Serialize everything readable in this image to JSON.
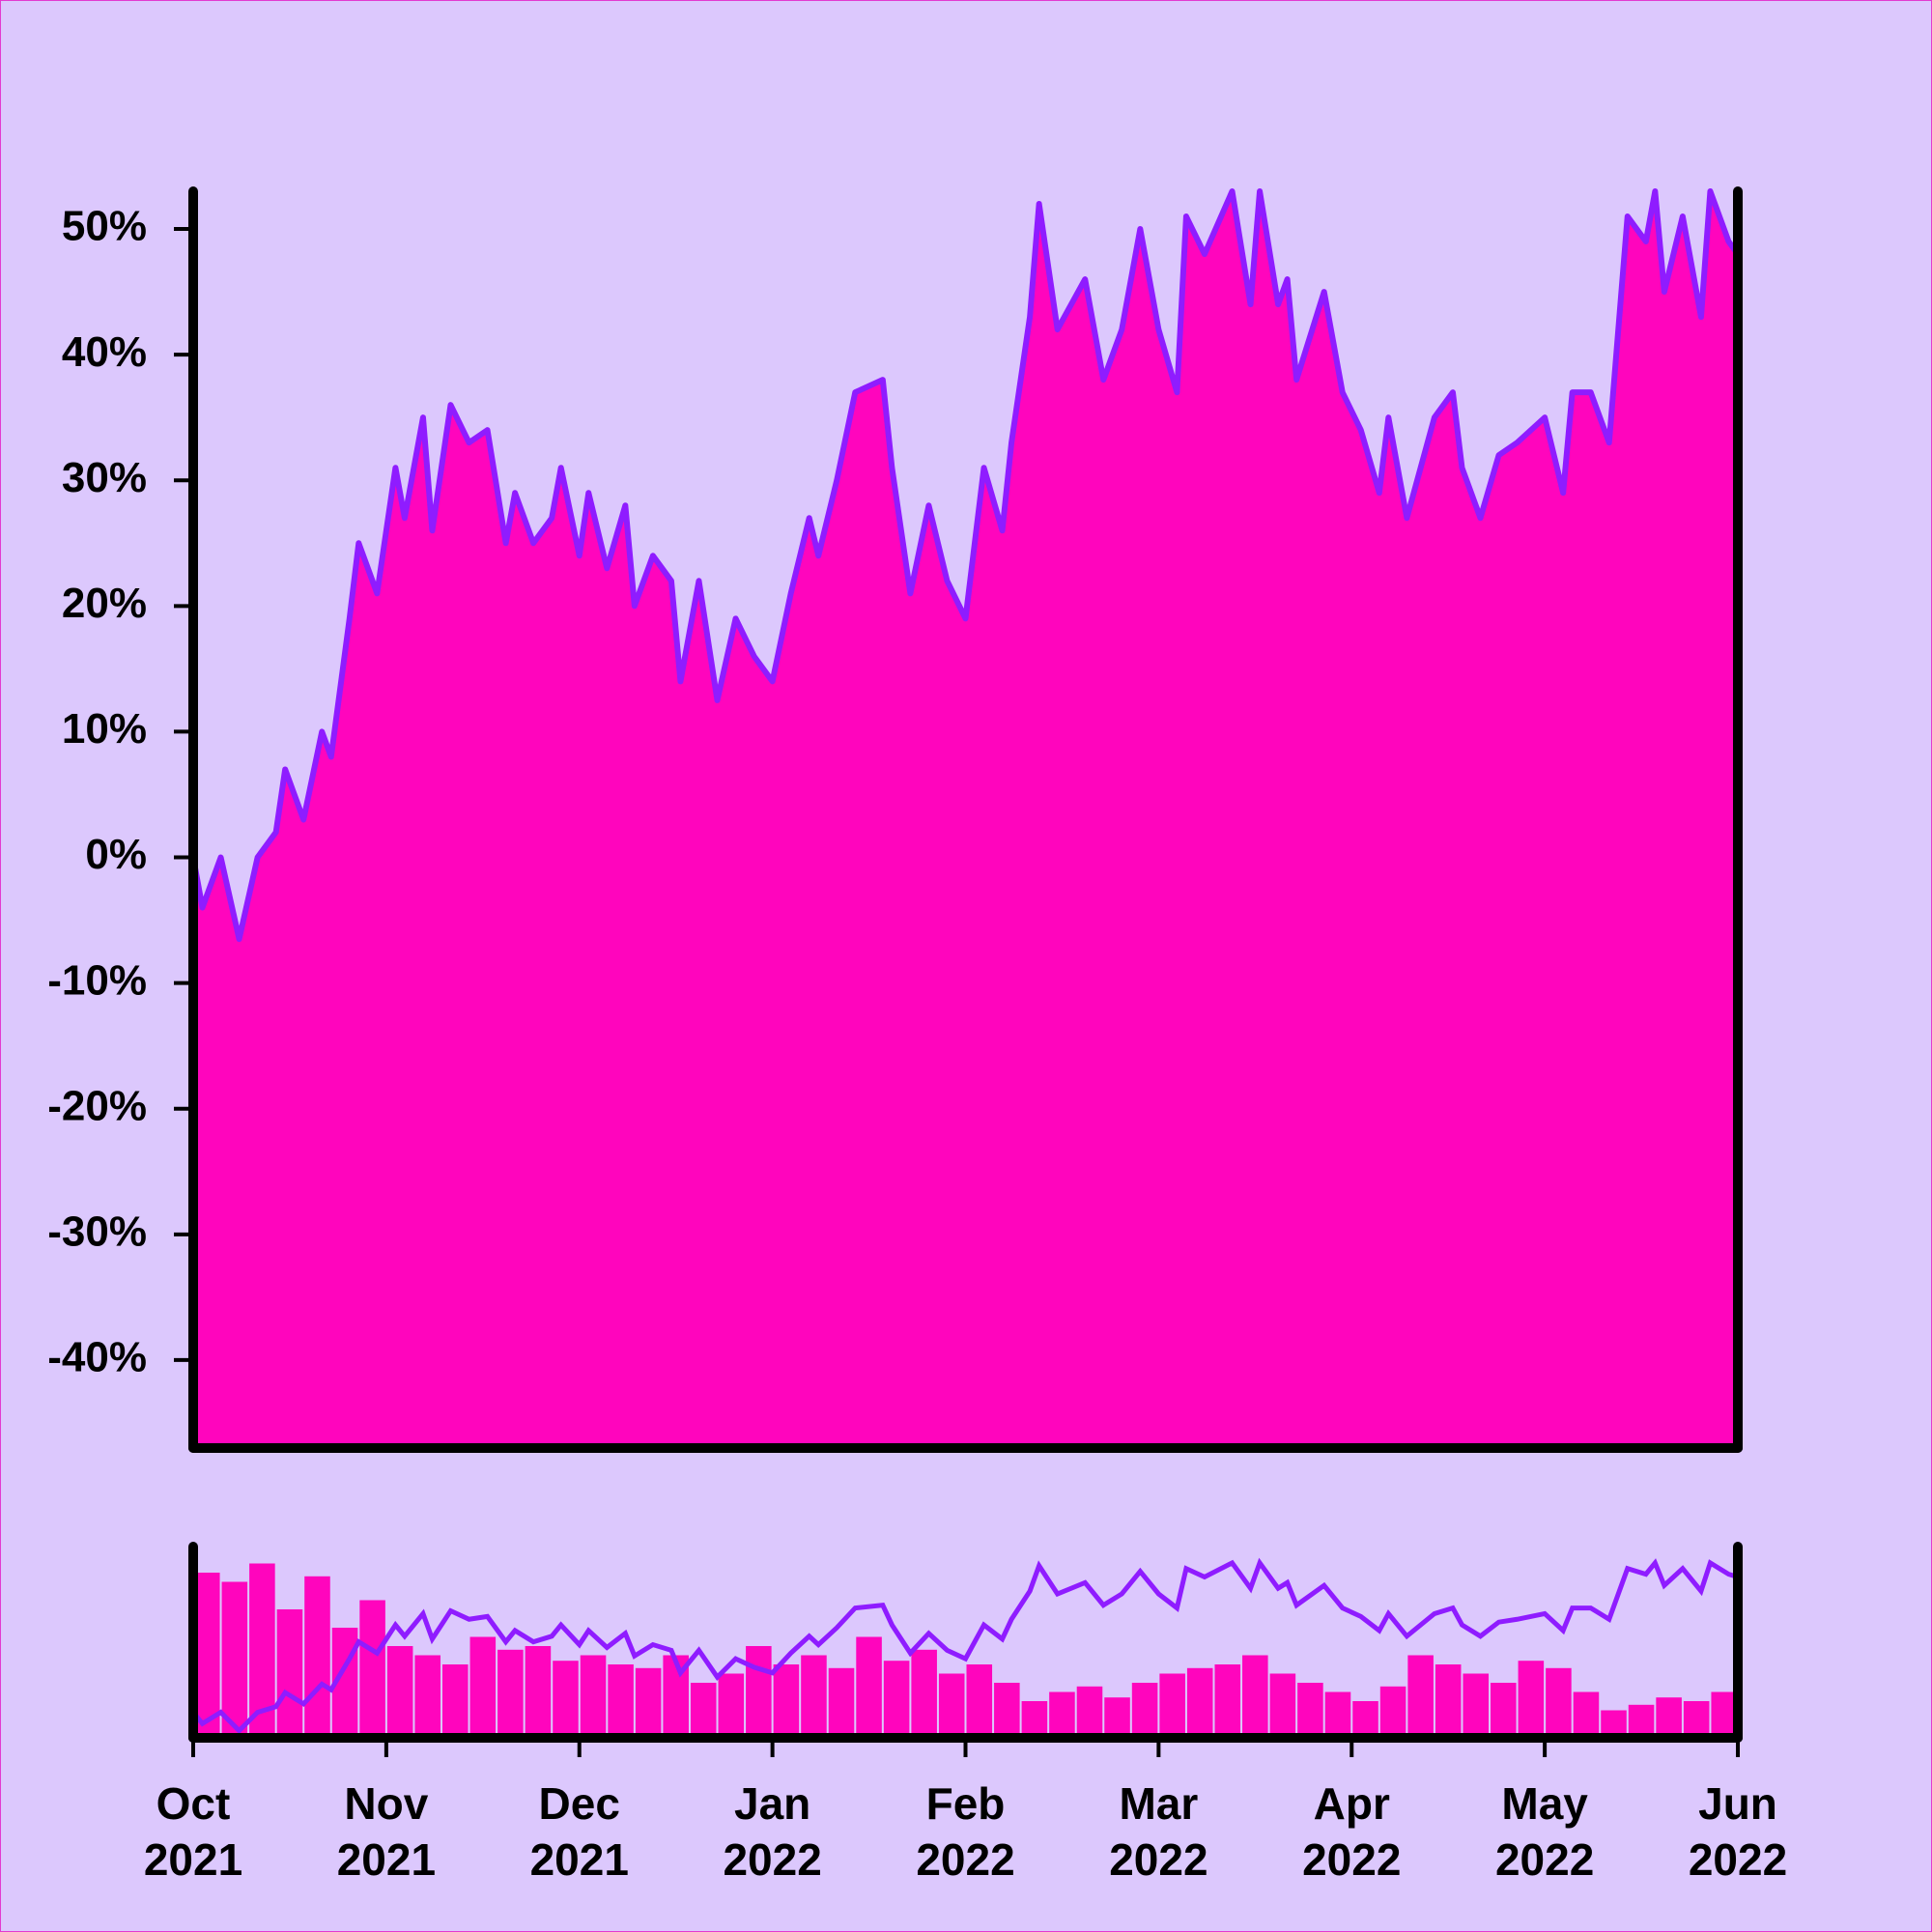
{
  "chart_data": [
    {
      "type": "area",
      "color": "#ff05bd",
      "line_color": "#8f1cff",
      "x": [
        0,
        1,
        3,
        5,
        7,
        9,
        10,
        12,
        14,
        15,
        17,
        18,
        20,
        22,
        23,
        25,
        26,
        28,
        30,
        32,
        34,
        35,
        37,
        39,
        40,
        42,
        43,
        45,
        47,
        48,
        50,
        52,
        53,
        55,
        57,
        59,
        61,
        63,
        65,
        67,
        68,
        70,
        72,
        75,
        76,
        78,
        80,
        82,
        84,
        86,
        88,
        89,
        91,
        92,
        94,
        97,
        99,
        101,
        103,
        105,
        107,
        108,
        110,
        113,
        115,
        116,
        118,
        119,
        120,
        123,
        125,
        127,
        129,
        130,
        132,
        135,
        137,
        138,
        140,
        142,
        144,
        147,
        149,
        150,
        152,
        154,
        156,
        158,
        159,
        160,
        162,
        164,
        165,
        167,
        168
      ],
      "values": [
        0,
        -4,
        0,
        -6.5,
        0,
        2,
        7,
        3,
        10,
        8,
        19,
        25,
        21,
        31,
        27,
        35,
        26,
        36,
        33,
        34,
        25,
        29,
        25,
        27,
        31,
        24,
        29,
        23,
        28,
        20,
        24,
        22,
        14,
        22,
        12.5,
        19,
        16,
        14,
        21,
        27,
        24,
        30,
        37,
        38,
        31,
        21,
        28,
        22,
        19,
        31,
        26,
        33,
        43,
        52,
        42,
        46,
        38,
        42,
        50,
        42,
        37,
        51,
        48,
        53,
        44,
        53,
        44,
        46,
        38,
        45,
        37,
        34,
        29,
        35,
        27,
        35,
        37,
        31,
        27,
        32,
        33,
        35,
        29,
        37,
        37,
        33,
        51,
        49,
        53,
        45,
        51,
        43,
        53,
        49,
        48
      ],
      "xlim": [
        0,
        168
      ],
      "xticks": [
        {
          "value": 0,
          "label": "Oct\n2021"
        },
        {
          "value": 21,
          "label": "Nov\n2021"
        },
        {
          "value": 42,
          "label": "Dec\n2021"
        },
        {
          "value": 63,
          "label": "Jan\n2022"
        },
        {
          "value": 84,
          "label": "Feb\n2022"
        },
        {
          "value": 105,
          "label": "Mar\n2022"
        },
        {
          "value": 126,
          "label": "Apr\n2022"
        },
        {
          "value": 147,
          "label": "May\n2022"
        },
        {
          "value": 168,
          "label": "Jun\n2022"
        }
      ],
      "ylim": [
        -47,
        53
      ],
      "yticks": [
        {
          "value": -40,
          "label": "-40%"
        },
        {
          "value": -30,
          "label": "-30%"
        },
        {
          "value": -20,
          "label": "-20%"
        },
        {
          "value": -10,
          "label": "-10%"
        },
        {
          "value": 0,
          "label": "0%"
        },
        {
          "value": 10,
          "label": "10%"
        },
        {
          "value": 20,
          "label": "20%"
        },
        {
          "value": 30,
          "label": "30%"
        },
        {
          "value": 40,
          "label": "40%"
        },
        {
          "value": 50,
          "label": "50%"
        }
      ]
    },
    {
      "type": "bar",
      "color": "#ff05bd",
      "values": [
        90,
        85,
        95,
        70,
        88,
        60,
        75,
        50,
        45,
        40,
        55,
        48,
        50,
        42,
        45,
        40,
        38,
        45,
        30,
        35,
        50,
        40,
        45,
        38,
        55,
        42,
        48,
        35,
        40,
        30,
        20,
        25,
        28,
        22,
        30,
        35,
        38,
        40,
        45,
        35,
        30,
        25,
        20,
        28,
        45,
        40,
        35,
        30,
        42,
        38,
        25,
        15,
        18,
        22,
        20,
        25
      ],
      "ylim": [
        0,
        100
      ],
      "y2lim": [
        -7,
        54
      ]
    }
  ]
}
